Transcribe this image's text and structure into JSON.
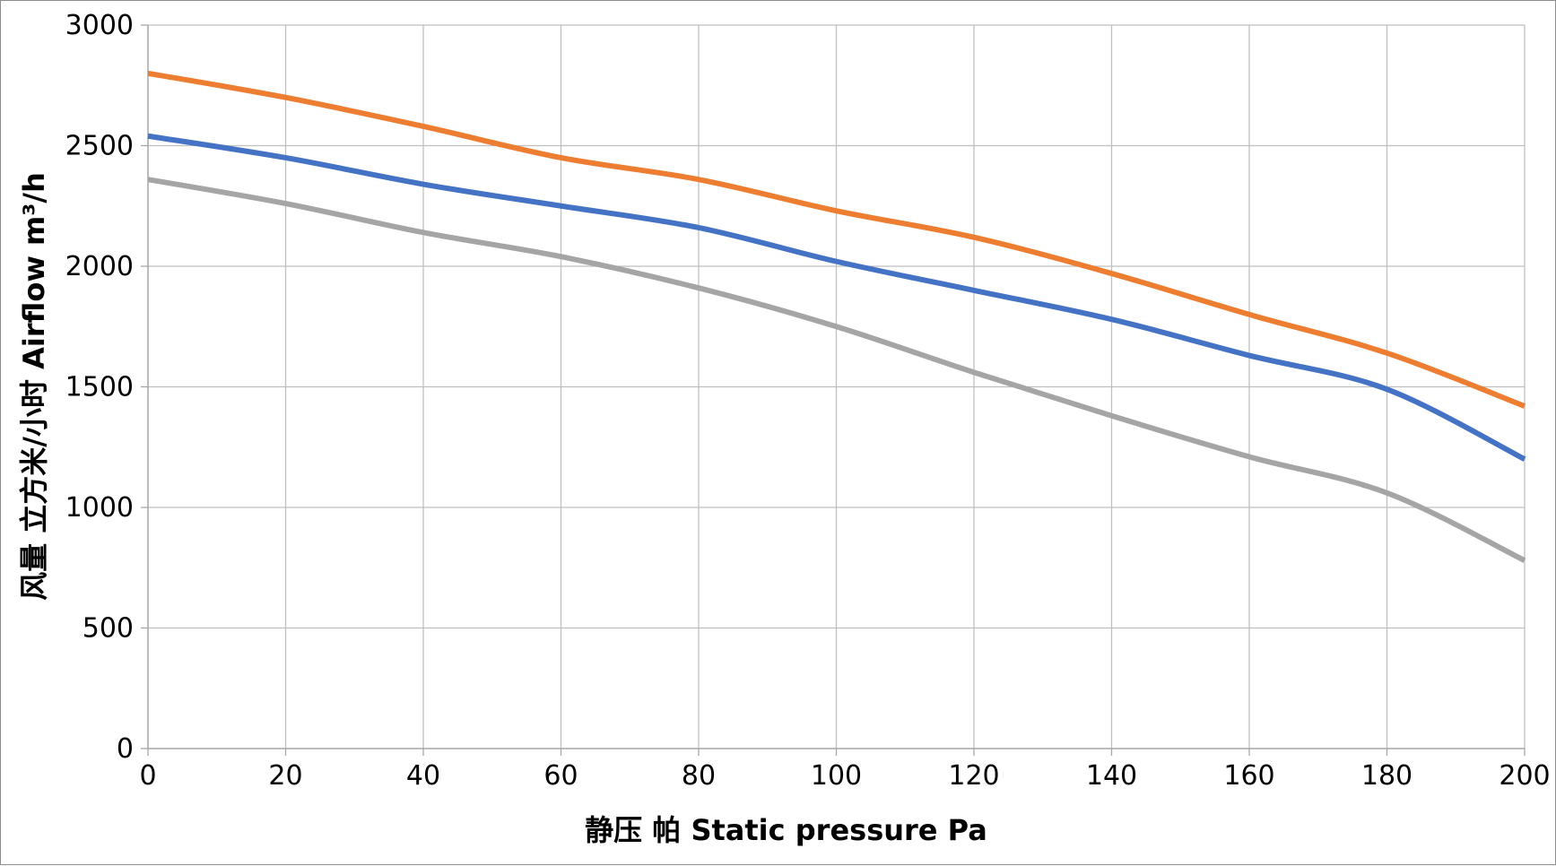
{
  "chart_data": {
    "type": "line",
    "title": "",
    "xlabel": "静压  帕 Static  pressure  Pa",
    "ylabel": "风量  立方米/小时 Airflow  m³/h",
    "xlim": [
      0,
      200
    ],
    "ylim": [
      0,
      3000
    ],
    "x_ticks": [
      "0",
      "20",
      "40",
      "60",
      "80",
      "100",
      "120",
      "140",
      "160",
      "180",
      "200"
    ],
    "y_ticks": [
      "0",
      "500",
      "1000",
      "1500",
      "2000",
      "2500",
      "3000"
    ],
    "grid": true,
    "x": [
      0,
      20,
      40,
      60,
      80,
      100,
      120,
      140,
      160,
      180,
      200
    ],
    "series": [
      {
        "name": "orange",
        "color": "#ed7d31",
        "values": [
          2800,
          2700,
          2580,
          2450,
          2360,
          2230,
          2120,
          1970,
          1800,
          1640,
          1420
        ]
      },
      {
        "name": "blue",
        "color": "#4472c4",
        "values": [
          2540,
          2450,
          2340,
          2250,
          2160,
          2020,
          1900,
          1780,
          1630,
          1490,
          1200
        ]
      },
      {
        "name": "gray",
        "color": "#a5a5a5",
        "values": [
          2360,
          2260,
          2140,
          2040,
          1910,
          1750,
          1560,
          1380,
          1210,
          1060,
          780
        ]
      }
    ]
  }
}
